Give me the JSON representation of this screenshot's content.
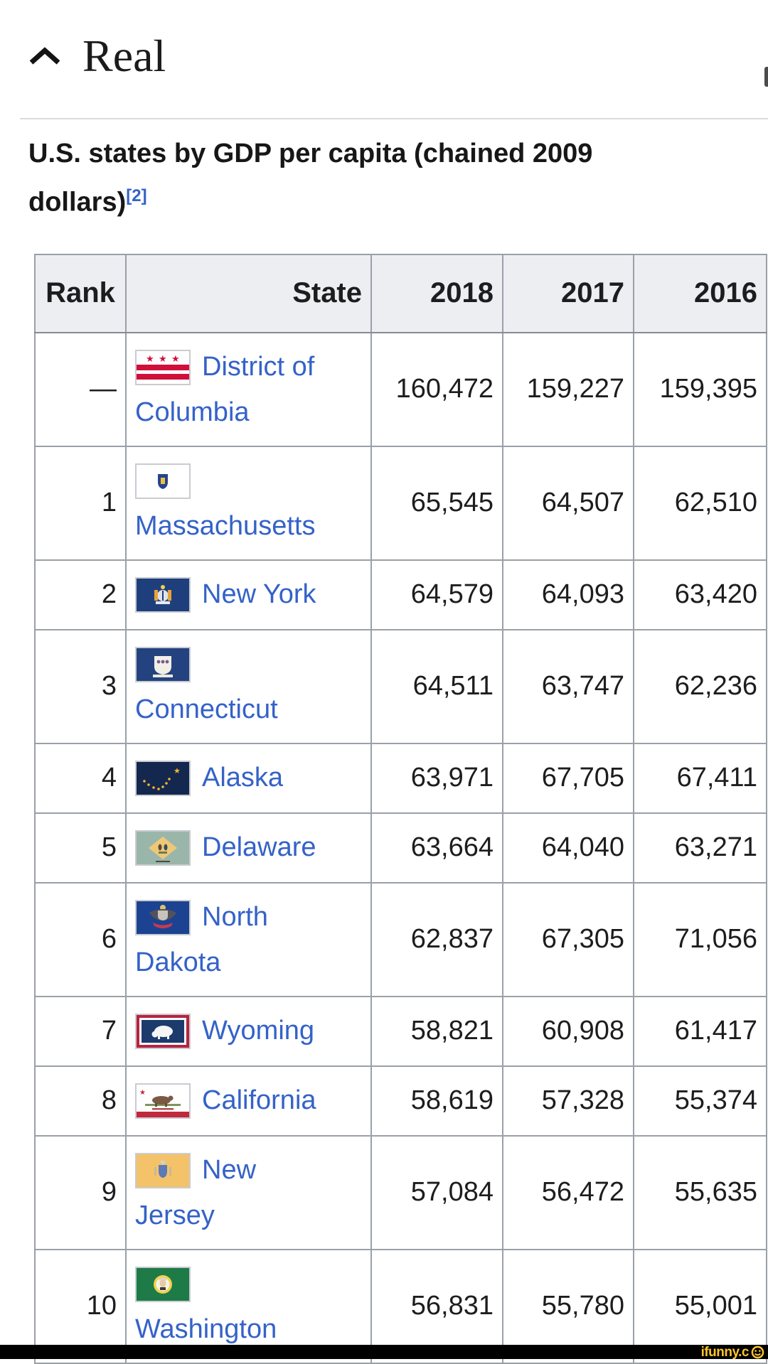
{
  "section": {
    "title": "Real"
  },
  "article": {
    "title_line1": "U.S. states by GDP per capita (chained 2009",
    "title_line2": "dollars)",
    "reference_label": "[2]"
  },
  "table": {
    "columns": [
      "Rank",
      "State",
      "2018",
      "2017",
      "2016"
    ],
    "rows": [
      {
        "rank": "—",
        "state": "District of Columbia",
        "state_lines": [
          "District of",
          "Columbia"
        ],
        "flag_icon": "district-of-columbia-flag-icon",
        "values": [
          "160,472",
          "159,227",
          "159,395"
        ]
      },
      {
        "rank": "1",
        "state": "Massachusetts",
        "state_lines": [
          "",
          "Massachusetts"
        ],
        "flag_icon": "massachusetts-flag-icon",
        "values": [
          "65,545",
          "64,507",
          "62,510"
        ]
      },
      {
        "rank": "2",
        "state": "New York",
        "state_lines": [
          "New York"
        ],
        "flag_icon": "new-york-flag-icon",
        "values": [
          "64,579",
          "64,093",
          "63,420"
        ]
      },
      {
        "rank": "3",
        "state": "Connecticut",
        "state_lines": [
          "",
          "Connecticut"
        ],
        "flag_icon": "connecticut-flag-icon",
        "values": [
          "64,511",
          "63,747",
          "62,236"
        ]
      },
      {
        "rank": "4",
        "state": "Alaska",
        "state_lines": [
          "Alaska"
        ],
        "flag_icon": "alaska-flag-icon",
        "values": [
          "63,971",
          "67,705",
          "67,411"
        ]
      },
      {
        "rank": "5",
        "state": "Delaware",
        "state_lines": [
          "Delaware"
        ],
        "flag_icon": "delaware-flag-icon",
        "values": [
          "63,664",
          "64,040",
          "63,271"
        ]
      },
      {
        "rank": "6",
        "state": "North Dakota",
        "state_lines": [
          "North",
          "Dakota"
        ],
        "flag_icon": "north-dakota-flag-icon",
        "values": [
          "62,837",
          "67,305",
          "71,056"
        ]
      },
      {
        "rank": "7",
        "state": "Wyoming",
        "state_lines": [
          "Wyoming"
        ],
        "flag_icon": "wyoming-flag-icon",
        "values": [
          "58,821",
          "60,908",
          "61,417"
        ]
      },
      {
        "rank": "8",
        "state": "California",
        "state_lines": [
          "California"
        ],
        "flag_icon": "california-flag-icon",
        "values": [
          "58,619",
          "57,328",
          "55,374"
        ]
      },
      {
        "rank": "9",
        "state": "New Jersey",
        "state_lines": [
          "New",
          "Jersey"
        ],
        "flag_icon": "new-jersey-flag-icon",
        "values": [
          "57,084",
          "56,472",
          "55,635"
        ]
      },
      {
        "rank": "10",
        "state": "Washington",
        "state_lines": [
          "",
          "Washington"
        ],
        "flag_icon": "washington-flag-icon",
        "values": [
          "56,831",
          "55,780",
          "55,001"
        ]
      }
    ]
  },
  "watermark": {
    "text": "ifunny.c",
    "smiley_icon": "smiley-icon"
  },
  "colors": {
    "link_blue": "#3462c8",
    "header_bg": "#eceef2",
    "table_border": "#9aa0a8",
    "watermark_yellow": "#fcc42c",
    "bar_black": "#000000"
  }
}
